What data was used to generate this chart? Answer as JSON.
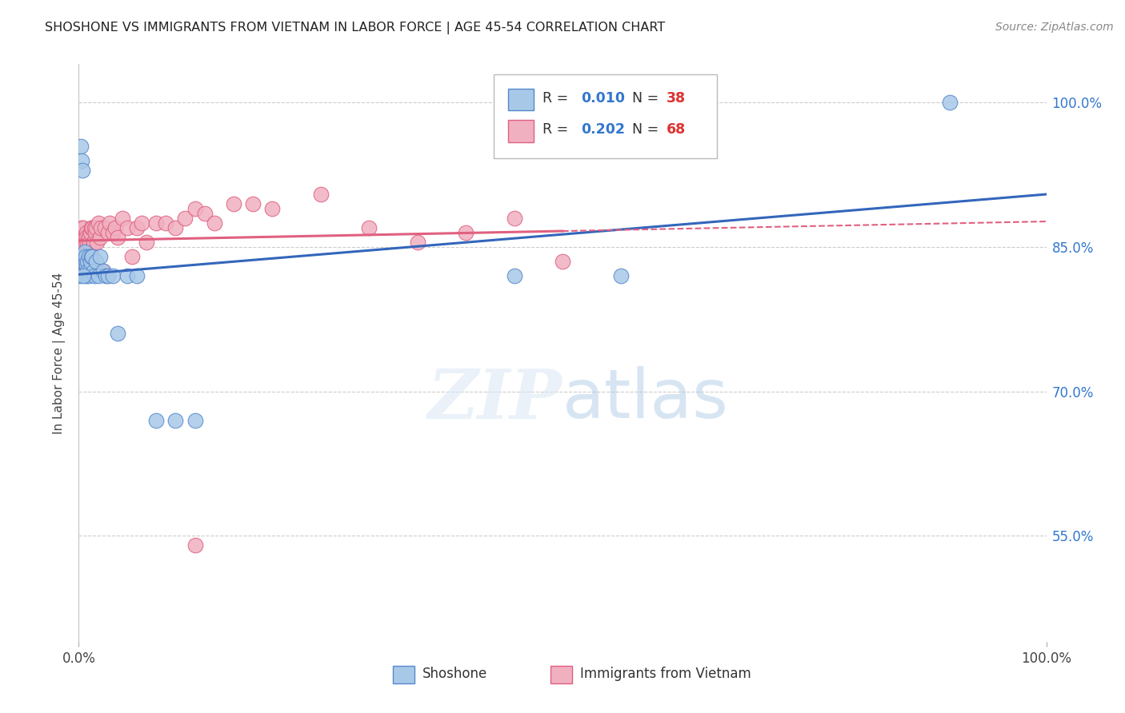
{
  "title": "SHOSHONE VS IMMIGRANTS FROM VIETNAM IN LABOR FORCE | AGE 45-54 CORRELATION CHART",
  "source_text": "Source: ZipAtlas.com",
  "ylabel": "In Labor Force | Age 45-54",
  "R_shoshone": "0.010",
  "N_shoshone": "38",
  "R_vietnam": "0.202",
  "N_vietnam": "68",
  "color_shoshone_fill": "#a8c8e8",
  "color_shoshone_edge": "#5588cc",
  "color_vietnam_fill": "#f0b0c0",
  "color_vietnam_edge": "#e06080",
  "color_shoshone_line": "#3366bb",
  "color_vietnam_line": "#e06080",
  "background_color": "#ffffff",
  "shoshone_x": [
    0.001,
    0.002,
    0.003,
    0.004,
    0.005,
    0.006,
    0.006,
    0.007,
    0.007,
    0.008,
    0.008,
    0.009,
    0.009,
    0.01,
    0.01,
    0.011,
    0.012,
    0.013,
    0.014,
    0.015,
    0.016,
    0.018,
    0.02,
    0.022,
    0.025,
    0.028,
    0.03,
    0.035,
    0.04,
    0.05,
    0.06,
    0.08,
    0.1,
    0.12,
    0.45,
    0.56,
    0.9,
    0.005
  ],
  "shoshone_y": [
    0.82,
    0.955,
    0.94,
    0.93,
    0.835,
    0.84,
    0.845,
    0.835,
    0.84,
    0.83,
    0.82,
    0.835,
    0.825,
    0.82,
    0.84,
    0.825,
    0.835,
    0.84,
    0.84,
    0.825,
    0.82,
    0.835,
    0.82,
    0.84,
    0.825,
    0.82,
    0.82,
    0.82,
    0.76,
    0.82,
    0.82,
    0.67,
    0.67,
    0.67,
    0.82,
    0.82,
    1.0,
    0.82
  ],
  "vietnam_x": [
    0.001,
    0.001,
    0.002,
    0.003,
    0.003,
    0.004,
    0.004,
    0.005,
    0.005,
    0.006,
    0.006,
    0.007,
    0.007,
    0.007,
    0.008,
    0.008,
    0.008,
    0.009,
    0.009,
    0.009,
    0.01,
    0.01,
    0.01,
    0.011,
    0.011,
    0.012,
    0.012,
    0.013,
    0.014,
    0.015,
    0.015,
    0.016,
    0.017,
    0.018,
    0.019,
    0.02,
    0.022,
    0.023,
    0.025,
    0.027,
    0.03,
    0.032,
    0.035,
    0.038,
    0.04,
    0.045,
    0.05,
    0.055,
    0.06,
    0.065,
    0.07,
    0.08,
    0.09,
    0.1,
    0.11,
    0.12,
    0.13,
    0.14,
    0.16,
    0.18,
    0.2,
    0.25,
    0.3,
    0.35,
    0.4,
    0.45,
    0.5,
    0.12
  ],
  "vietnam_y": [
    0.84,
    0.86,
    0.855,
    0.86,
    0.87,
    0.855,
    0.835,
    0.87,
    0.86,
    0.85,
    0.86,
    0.84,
    0.855,
    0.84,
    0.865,
    0.845,
    0.86,
    0.855,
    0.845,
    0.84,
    0.86,
    0.84,
    0.86,
    0.855,
    0.845,
    0.865,
    0.845,
    0.87,
    0.87,
    0.855,
    0.855,
    0.87,
    0.865,
    0.87,
    0.855,
    0.875,
    0.86,
    0.87,
    0.825,
    0.87,
    0.865,
    0.875,
    0.865,
    0.87,
    0.86,
    0.88,
    0.87,
    0.84,
    0.87,
    0.875,
    0.855,
    0.875,
    0.875,
    0.87,
    0.88,
    0.89,
    0.885,
    0.875,
    0.895,
    0.895,
    0.89,
    0.905,
    0.87,
    0.855,
    0.865,
    0.88,
    0.835,
    0.54
  ],
  "xlim": [
    0,
    1.0
  ],
  "ylim": [
    0.44,
    1.04
  ],
  "yticks": [
    0.55,
    0.7,
    0.85,
    1.0
  ],
  "ytick_labels": [
    "55.0%",
    "70.0%",
    "85.0%",
    "100.0%"
  ],
  "xtick_labels": [
    "0.0%",
    "100.0%"
  ]
}
